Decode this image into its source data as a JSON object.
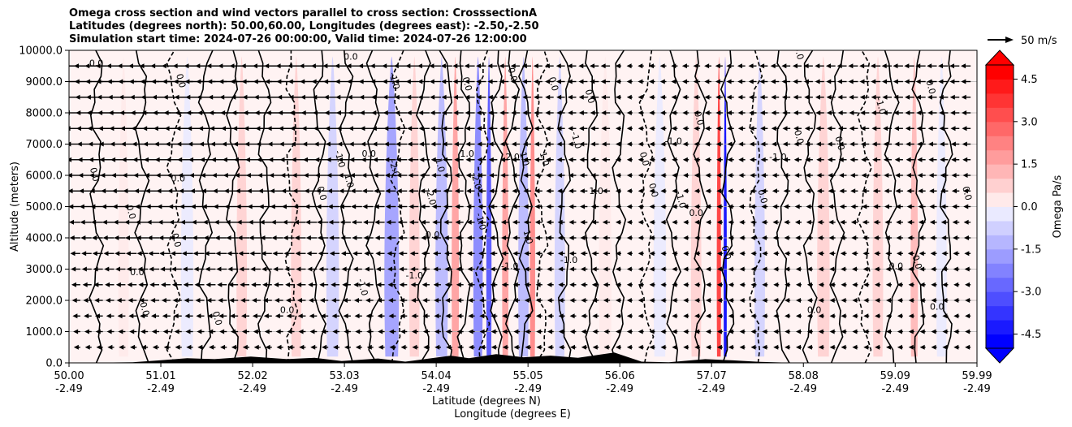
{
  "chart_data": {
    "type": "heatmap",
    "title_lines": [
      "Omega cross section and wind vectors parallel to cross section: CrosssectionA",
      "Latitudes (degrees north): 50.00,60.00, Longitudes (degrees east): -2.50,-2.50",
      "Simulation start time: 2024-07-26 00:00:00, Valid time: 2024-07-26 12:00:00"
    ],
    "xlabel_lines": [
      "Latitude (degrees N)",
      "Longitude (degrees E)"
    ],
    "ylabel": "Altitude (meters)",
    "xlim": [
      50.0,
      59.99
    ],
    "ylim": [
      0,
      10000
    ],
    "x_ticks": [
      {
        "lat": "50.00",
        "lon": "-2.49"
      },
      {
        "lat": "51.01",
        "lon": "-2.49"
      },
      {
        "lat": "52.02",
        "lon": "-2.49"
      },
      {
        "lat": "53.03",
        "lon": "-2.49"
      },
      {
        "lat": "54.04",
        "lon": "-2.49"
      },
      {
        "lat": "55.05",
        "lon": "-2.49"
      },
      {
        "lat": "56.06",
        "lon": "-2.49"
      },
      {
        "lat": "57.07",
        "lon": "-2.49"
      },
      {
        "lat": "58.08",
        "lon": "-2.49"
      },
      {
        "lat": "59.09",
        "lon": "-2.49"
      },
      {
        "lat": "59.99",
        "lon": "-2.49"
      }
    ],
    "y_ticks": [
      "0.0",
      "1000.0",
      "2000.0",
      "3000.0",
      "4000.0",
      "5000.0",
      "6000.0",
      "7000.0",
      "8000.0",
      "9000.0",
      "10000.0"
    ],
    "grid": "horizontal",
    "colorbar": {
      "label": "Omega Pa/s",
      "range": [
        -5.0,
        5.0
      ],
      "extend": "both",
      "ticks": [
        "-4.5",
        "-3.0",
        "-1.5",
        "0.0",
        "1.5",
        "3.0",
        "4.5"
      ],
      "colors": [
        "#0000ff",
        "#1a1aff",
        "#3434ff",
        "#4e4eff",
        "#6868ff",
        "#8282ff",
        "#9c9cff",
        "#b6b6ff",
        "#d0d0ff",
        "#eaeaff",
        "#ffeaea",
        "#ffd0d0",
        "#ffb6b6",
        "#ff9c9c",
        "#ff8282",
        "#ff6868",
        "#ff4e4e",
        "#ff3434",
        "#ff1a1a",
        "#ff0000"
      ]
    },
    "wind_key": {
      "label": "50 m/s",
      "speed_ms": 50
    },
    "wind_rows_m": [
      500,
      1000,
      1500,
      2000,
      2500,
      3000,
      3500,
      4000,
      4500,
      5000,
      5500,
      6000,
      6500,
      7000,
      7500,
      8000,
      8500,
      9000,
      9500
    ],
    "omega_bands": [
      {
        "lat": 50.6,
        "width": 0.1,
        "value": 0.3
      },
      {
        "lat": 51.3,
        "width": 0.12,
        "value": -0.5
      },
      {
        "lat": 51.9,
        "width": 0.1,
        "value": 0.7
      },
      {
        "lat": 52.5,
        "width": 0.1,
        "value": 0.6
      },
      {
        "lat": 52.9,
        "width": 0.12,
        "value": -0.8
      },
      {
        "lat": 53.55,
        "width": 0.14,
        "value": -1.8
      },
      {
        "lat": 53.8,
        "width": 0.1,
        "value": 0.9
      },
      {
        "lat": 54.1,
        "width": 0.12,
        "value": -1.2
      },
      {
        "lat": 54.25,
        "width": 0.07,
        "value": 1.5
      },
      {
        "lat": 54.5,
        "width": 0.09,
        "value": -2.2
      },
      {
        "lat": 54.62,
        "width": 0.05,
        "value": -3.5
      },
      {
        "lat": 54.8,
        "width": 0.06,
        "value": 1.8
      },
      {
        "lat": 55.0,
        "width": 0.1,
        "value": -1.5
      },
      {
        "lat": 55.1,
        "width": 0.05,
        "value": 2.2
      },
      {
        "lat": 55.4,
        "width": 0.1,
        "value": -0.9
      },
      {
        "lat": 55.9,
        "width": 0.12,
        "value": 0.4
      },
      {
        "lat": 56.5,
        "width": 0.12,
        "value": -0.5
      },
      {
        "lat": 56.9,
        "width": 0.1,
        "value": 0.6
      },
      {
        "lat": 57.15,
        "width": 0.04,
        "value": 3.5
      },
      {
        "lat": 57.22,
        "width": 0.03,
        "value": -4.8
      },
      {
        "lat": 57.6,
        "width": 0.1,
        "value": -0.6
      },
      {
        "lat": 58.3,
        "width": 0.12,
        "value": 0.5
      },
      {
        "lat": 58.9,
        "width": 0.1,
        "value": 0.7
      },
      {
        "lat": 59.3,
        "width": 0.07,
        "value": 1.4
      },
      {
        "lat": 59.6,
        "width": 0.1,
        "value": -0.4
      }
    ],
    "contour_lines_lat": [
      50.3,
      50.8,
      51.15,
      51.5,
      51.8,
      52.15,
      52.45,
      52.75,
      53.05,
      53.35,
      53.62,
      53.9,
      54.15,
      54.35,
      54.55,
      54.7,
      54.88,
      55.03,
      55.2,
      55.45,
      55.75,
      56.05,
      56.35,
      56.65,
      56.95,
      57.25,
      57.55,
      57.85,
      58.15,
      58.45,
      58.75,
      59.05,
      59.35,
      59.65
    ],
    "contour_labels": [
      {
        "text": "0.0",
        "lat": 50.3,
        "alt": 9500
      },
      {
        "text": "0.0",
        "lat": 50.25,
        "alt": 6000
      },
      {
        "text": "0.0",
        "lat": 50.65,
        "alt": 4800
      },
      {
        "text": "0.0",
        "lat": 50.75,
        "alt": 2800
      },
      {
        "text": "0.0",
        "lat": 50.8,
        "alt": 1700
      },
      {
        "text": "0.0",
        "lat": 51.15,
        "alt": 3900
      },
      {
        "text": "0.0",
        "lat": 51.2,
        "alt": 5800
      },
      {
        "text": "0.0",
        "lat": 51.2,
        "alt": 9000
      },
      {
        "text": "0.0",
        "lat": 51.6,
        "alt": 1400
      },
      {
        "text": "0.0",
        "lat": 52.4,
        "alt": 1600
      },
      {
        "text": "0.0",
        "lat": 52.75,
        "alt": 5400
      },
      {
        "text": "-1.0",
        "lat": 52.95,
        "alt": 6500
      },
      {
        "text": "0.0",
        "lat": 53.1,
        "alt": 9700
      },
      {
        "text": "1.0",
        "lat": 53.05,
        "alt": 5800
      },
      {
        "text": "-1.0",
        "lat": 53.2,
        "alt": 2400
      },
      {
        "text": "0.0",
        "lat": 53.3,
        "alt": 6600
      },
      {
        "text": "-1.0",
        "lat": 53.55,
        "alt": 9000
      },
      {
        "text": "-2.0",
        "lat": 53.55,
        "alt": 6200
      },
      {
        "text": "-1.0",
        "lat": 53.8,
        "alt": 2700
      },
      {
        "text": "1.0",
        "lat": 54.05,
        "alt": 6300
      },
      {
        "text": "-2.0",
        "lat": 53.95,
        "alt": 5300
      },
      {
        "text": "0.0",
        "lat": 54.0,
        "alt": 4000
      },
      {
        "text": "0.0",
        "lat": 54.35,
        "alt": 8900
      },
      {
        "text": "-2.0",
        "lat": 54.45,
        "alt": 5800
      },
      {
        "text": "1.0",
        "lat": 54.38,
        "alt": 6600
      },
      {
        "text": "-1.0",
        "lat": 54.5,
        "alt": 4500
      },
      {
        "text": "0.0",
        "lat": 54.85,
        "alt": 9200
      },
      {
        "text": "2.0",
        "lat": 54.88,
        "alt": 6500
      },
      {
        "text": "1.0",
        "lat": 54.98,
        "alt": 6500
      },
      {
        "text": "1.0",
        "lat": 55.02,
        "alt": 4000
      },
      {
        "text": "-1.0",
        "lat": 54.85,
        "alt": 3000
      },
      {
        "text": "1.0",
        "lat": 55.2,
        "alt": 6500
      },
      {
        "text": "0.0",
        "lat": 55.3,
        "alt": 8900
      },
      {
        "text": "-1.0",
        "lat": 55.5,
        "alt": 3200
      },
      {
        "text": "-1.0",
        "lat": 55.55,
        "alt": 7100
      },
      {
        "text": "0.0",
        "lat": 55.7,
        "alt": 8500
      },
      {
        "text": "1.0",
        "lat": 55.8,
        "alt": 5400
      },
      {
        "text": "0.0",
        "lat": 56.3,
        "alt": 6500
      },
      {
        "text": "0.0",
        "lat": 56.4,
        "alt": 5500
      },
      {
        "text": "-1.0",
        "lat": 56.65,
        "alt": 7000
      },
      {
        "text": "-1.0",
        "lat": 56.7,
        "alt": 5200
      },
      {
        "text": "0.0",
        "lat": 56.9,
        "alt": 7800
      },
      {
        "text": "0.0",
        "lat": 56.9,
        "alt": 4700
      },
      {
        "text": "0.0",
        "lat": 57.2,
        "alt": 3500
      },
      {
        "text": "0.0",
        "lat": 57.6,
        "alt": 5300
      },
      {
        "text": "-1.0",
        "lat": 57.8,
        "alt": 6500
      },
      {
        "text": "0.0",
        "lat": 58.0,
        "alt": 7200
      },
      {
        "text": "0.0",
        "lat": 58.0,
        "alt": 9900
      },
      {
        "text": "0.0",
        "lat": 58.2,
        "alt": 1600
      },
      {
        "text": "0.0",
        "lat": 58.45,
        "alt": 7000
      },
      {
        "text": "-1.0",
        "lat": 58.9,
        "alt": 8200
      },
      {
        "text": "0.0",
        "lat": 59.1,
        "alt": 3000
      },
      {
        "text": "0.0",
        "lat": 59.3,
        "alt": 3200
      },
      {
        "text": "0.0",
        "lat": 59.45,
        "alt": 8800
      },
      {
        "text": "0.0",
        "lat": 59.55,
        "alt": 1700
      },
      {
        "text": "0.0",
        "lat": 59.85,
        "alt": 5400
      }
    ],
    "terrain_m": [
      {
        "lat": 50.0,
        "alt": 0
      },
      {
        "lat": 50.7,
        "alt": 20
      },
      {
        "lat": 51.0,
        "alt": 80
      },
      {
        "lat": 51.3,
        "alt": 150
      },
      {
        "lat": 51.6,
        "alt": 120
      },
      {
        "lat": 52.0,
        "alt": 200
      },
      {
        "lat": 52.4,
        "alt": 120
      },
      {
        "lat": 52.7,
        "alt": 160
      },
      {
        "lat": 53.0,
        "alt": 60
      },
      {
        "lat": 53.4,
        "alt": 140
      },
      {
        "lat": 53.7,
        "alt": 40
      },
      {
        "lat": 54.2,
        "alt": 230
      },
      {
        "lat": 54.4,
        "alt": 150
      },
      {
        "lat": 54.7,
        "alt": 280
      },
      {
        "lat": 55.0,
        "alt": 180
      },
      {
        "lat": 55.3,
        "alt": 230
      },
      {
        "lat": 55.6,
        "alt": 160
      },
      {
        "lat": 56.0,
        "alt": 330
      },
      {
        "lat": 56.3,
        "alt": 40
      },
      {
        "lat": 56.6,
        "alt": 20
      },
      {
        "lat": 57.0,
        "alt": 120
      },
      {
        "lat": 57.3,
        "alt": 80
      },
      {
        "lat": 57.6,
        "alt": 30
      },
      {
        "lat": 58.0,
        "alt": 0
      },
      {
        "lat": 59.99,
        "alt": 0
      }
    ]
  }
}
